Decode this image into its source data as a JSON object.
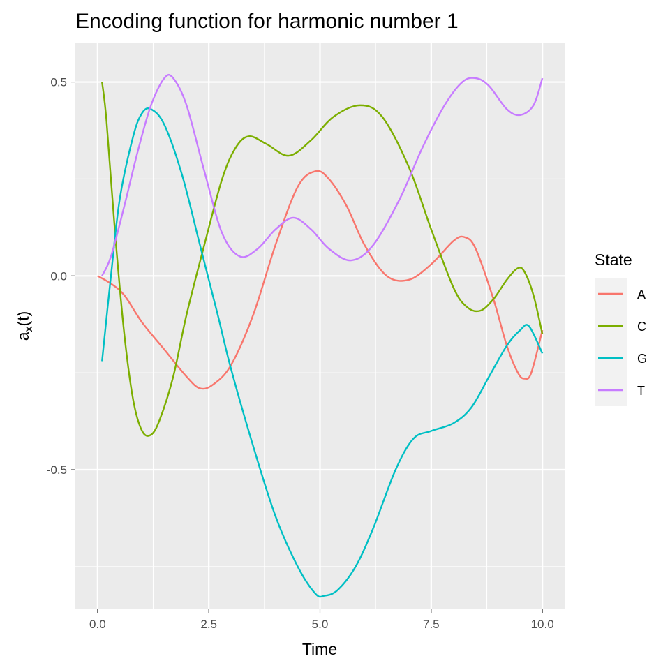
{
  "chart_data": {
    "type": "line",
    "title": "Encoding function for harmonic number 1",
    "xlabel": "Time",
    "ylabel_main": "a",
    "ylabel_sub": "x",
    "ylabel_rest": "(t)",
    "xlim": [
      -0.5,
      10.5
    ],
    "ylim": [
      -0.86,
      0.6
    ],
    "x_ticks": [
      0,
      2.5,
      5,
      7.5,
      10
    ],
    "x_tick_labels": [
      "0.0",
      "2.5",
      "5.0",
      "7.5",
      "10.0"
    ],
    "y_ticks": [
      0.5,
      0,
      -0.5
    ],
    "y_tick_labels": [
      "0.5",
      "0.0",
      "-0.5"
    ],
    "grid": true,
    "legend": {
      "title": "State",
      "position": "right"
    },
    "series": [
      {
        "name": "A",
        "color": "#F8766D",
        "points": [
          [
            0,
            0
          ],
          [
            0.3,
            -0.02
          ],
          [
            0.6,
            -0.05
          ],
          [
            1.0,
            -0.12
          ],
          [
            1.5,
            -0.19
          ],
          [
            2.0,
            -0.26
          ],
          [
            2.3,
            -0.29
          ],
          [
            2.6,
            -0.28
          ],
          [
            3.0,
            -0.23
          ],
          [
            3.5,
            -0.1
          ],
          [
            4.0,
            0.08
          ],
          [
            4.5,
            0.23
          ],
          [
            4.9,
            0.27
          ],
          [
            5.2,
            0.25
          ],
          [
            5.6,
            0.18
          ],
          [
            6.0,
            0.08
          ],
          [
            6.5,
            0.0
          ],
          [
            7.0,
            -0.01
          ],
          [
            7.5,
            0.03
          ],
          [
            8.0,
            0.09
          ],
          [
            8.25,
            0.1
          ],
          [
            8.5,
            0.07
          ],
          [
            8.9,
            -0.06
          ],
          [
            9.2,
            -0.18
          ],
          [
            9.45,
            -0.25
          ],
          [
            9.6,
            -0.265
          ],
          [
            9.75,
            -0.25
          ],
          [
            10.0,
            -0.14
          ]
        ]
      },
      {
        "name": "C",
        "color": "#7CAE00",
        "points": [
          [
            0.1,
            0.5
          ],
          [
            0.2,
            0.4
          ],
          [
            0.4,
            0.1
          ],
          [
            0.6,
            -0.15
          ],
          [
            0.8,
            -0.32
          ],
          [
            1.0,
            -0.4
          ],
          [
            1.2,
            -0.41
          ],
          [
            1.4,
            -0.37
          ],
          [
            1.7,
            -0.26
          ],
          [
            2.0,
            -0.1
          ],
          [
            2.4,
            0.08
          ],
          [
            2.8,
            0.25
          ],
          [
            3.1,
            0.33
          ],
          [
            3.4,
            0.36
          ],
          [
            3.8,
            0.34
          ],
          [
            4.3,
            0.31
          ],
          [
            4.8,
            0.35
          ],
          [
            5.3,
            0.41
          ],
          [
            5.9,
            0.44
          ],
          [
            6.4,
            0.41
          ],
          [
            7.0,
            0.28
          ],
          [
            7.5,
            0.12
          ],
          [
            8.0,
            -0.03
          ],
          [
            8.3,
            -0.08
          ],
          [
            8.6,
            -0.09
          ],
          [
            8.9,
            -0.06
          ],
          [
            9.2,
            -0.01
          ],
          [
            9.45,
            0.02
          ],
          [
            9.6,
            0.01
          ],
          [
            9.8,
            -0.05
          ],
          [
            10.0,
            -0.15
          ]
        ]
      },
      {
        "name": "G",
        "color": "#00BFC4",
        "points": [
          [
            0.1,
            -0.22
          ],
          [
            0.3,
            0.0
          ],
          [
            0.5,
            0.2
          ],
          [
            0.8,
            0.36
          ],
          [
            1.0,
            0.42
          ],
          [
            1.2,
            0.43
          ],
          [
            1.5,
            0.39
          ],
          [
            1.9,
            0.26
          ],
          [
            2.3,
            0.08
          ],
          [
            2.7,
            -0.1
          ],
          [
            3.0,
            -0.24
          ],
          [
            3.5,
            -0.44
          ],
          [
            4.0,
            -0.62
          ],
          [
            4.5,
            -0.75
          ],
          [
            4.9,
            -0.82
          ],
          [
            5.1,
            -0.825
          ],
          [
            5.4,
            -0.81
          ],
          [
            5.8,
            -0.75
          ],
          [
            6.2,
            -0.65
          ],
          [
            6.7,
            -0.5
          ],
          [
            7.1,
            -0.42
          ],
          [
            7.5,
            -0.4
          ],
          [
            8.0,
            -0.38
          ],
          [
            8.4,
            -0.34
          ],
          [
            8.8,
            -0.26
          ],
          [
            9.2,
            -0.18
          ],
          [
            9.5,
            -0.14
          ],
          [
            9.7,
            -0.13
          ],
          [
            10.0,
            -0.2
          ]
        ]
      },
      {
        "name": "T",
        "color": "#C77CFF",
        "points": [
          [
            0.1,
            0.0
          ],
          [
            0.3,
            0.05
          ],
          [
            0.6,
            0.18
          ],
          [
            0.9,
            0.32
          ],
          [
            1.2,
            0.44
          ],
          [
            1.5,
            0.51
          ],
          [
            1.7,
            0.51
          ],
          [
            2.0,
            0.44
          ],
          [
            2.4,
            0.27
          ],
          [
            2.8,
            0.11
          ],
          [
            3.2,
            0.05
          ],
          [
            3.6,
            0.07
          ],
          [
            4.0,
            0.12
          ],
          [
            4.4,
            0.15
          ],
          [
            4.8,
            0.12
          ],
          [
            5.2,
            0.07
          ],
          [
            5.7,
            0.04
          ],
          [
            6.2,
            0.08
          ],
          [
            6.8,
            0.2
          ],
          [
            7.3,
            0.33
          ],
          [
            7.8,
            0.44
          ],
          [
            8.2,
            0.5
          ],
          [
            8.5,
            0.51
          ],
          [
            8.8,
            0.49
          ],
          [
            9.2,
            0.43
          ],
          [
            9.5,
            0.415
          ],
          [
            9.8,
            0.44
          ],
          [
            10.0,
            0.51
          ]
        ]
      }
    ]
  }
}
